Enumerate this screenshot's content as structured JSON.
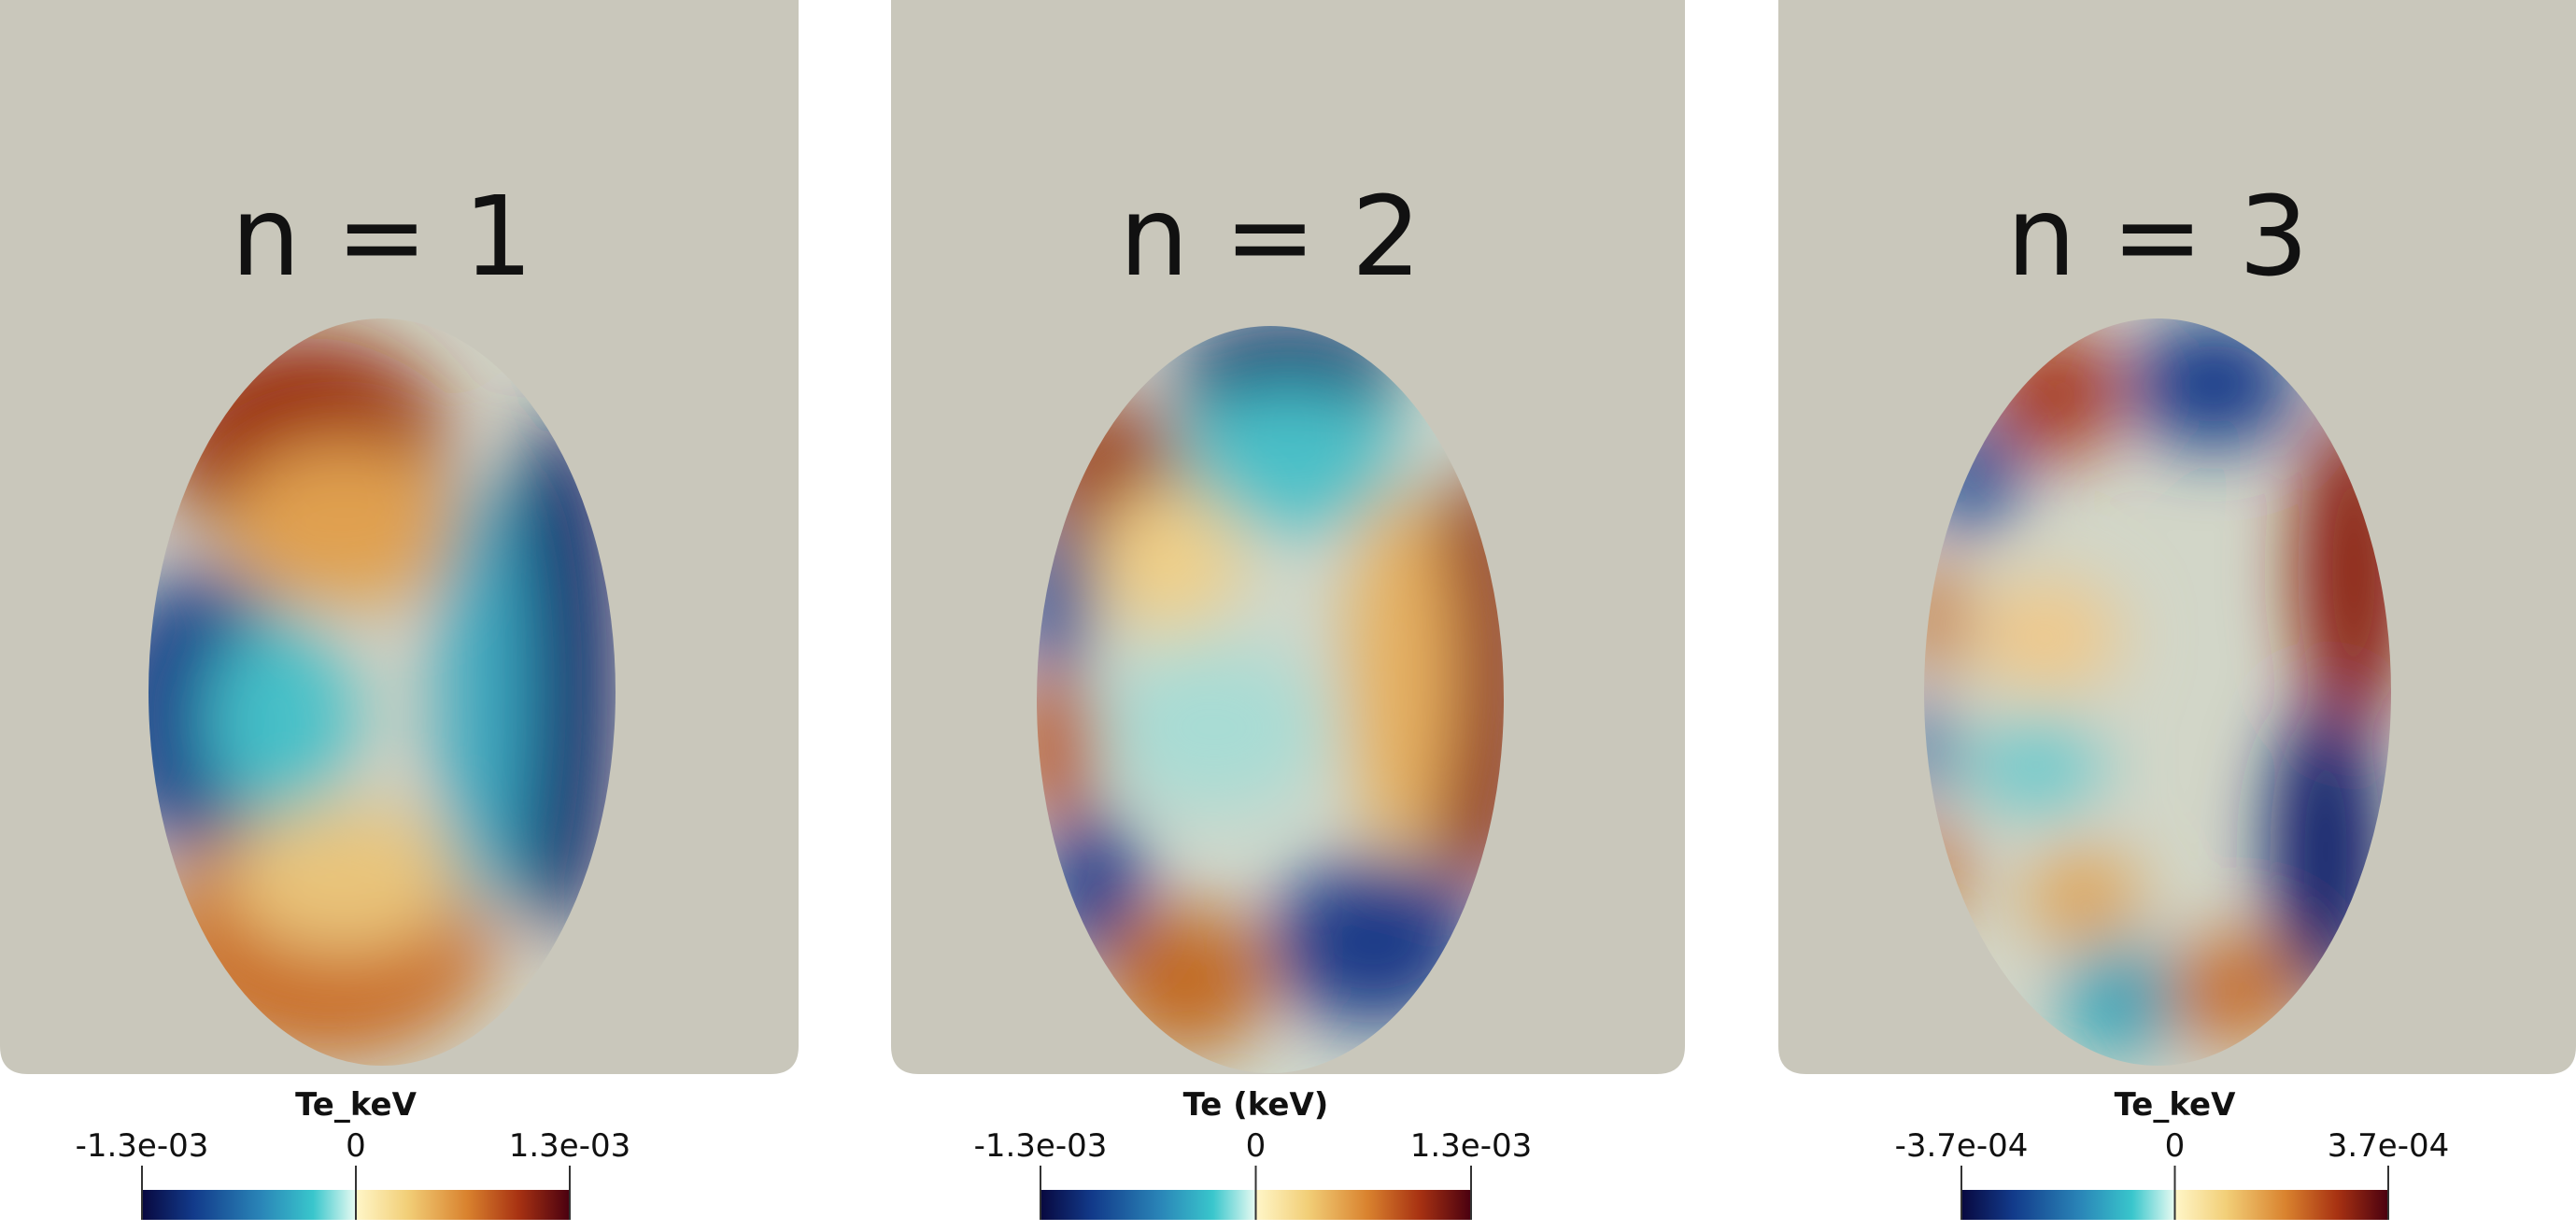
{
  "panels": [
    {
      "label": "n = 1",
      "colorbar": {
        "title": "Te_keV",
        "ticks": [
          "-1.3e-03",
          "0",
          "1.3e-03"
        ]
      }
    },
    {
      "label": "n = 2",
      "colorbar": {
        "title": "Te (keV)",
        "ticks": [
          "-1.3e-03",
          "0",
          "1.3e-03"
        ]
      }
    },
    {
      "label": "n = 3",
      "colorbar": {
        "title": "Te_keV",
        "ticks": [
          "-3.7e-04",
          "0",
          "3.7e-04"
        ]
      }
    }
  ]
}
